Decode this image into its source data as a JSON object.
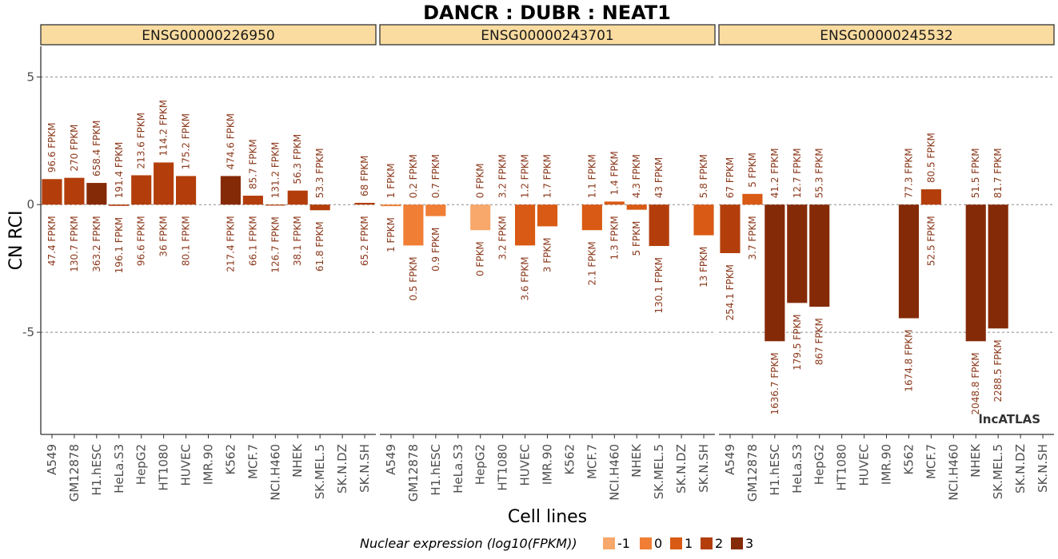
{
  "chart_data": {
    "type": "bar",
    "title": "DANCR : DUBR : NEAT1",
    "xlabel": "Cell lines",
    "ylabel": "CN RCI",
    "ylim": [
      -9.0,
      6.2
    ],
    "y_ticks": [
      5,
      0,
      -5
    ],
    "y_tick_labels": [
      "5",
      "0",
      "-5"
    ],
    "grid": "dashed at y ticks",
    "categories": [
      "A549",
      "GM12878",
      "H1.hESC",
      "HeLa.S3",
      "HepG2",
      "HT1080",
      "HUVEC",
      "IMR.90",
      "K562",
      "MCF.7",
      "NCI.H460",
      "NHEK",
      "SK.MEL.5",
      "SK.N.DZ",
      "SK.N.SH"
    ],
    "color_scale": {
      "title": "Nuclear expression (log10(FPKM))",
      "levels": [
        {
          "label": "-1",
          "color": "#f7a86a"
        },
        {
          "label": "0",
          "color": "#f07e35"
        },
        {
          "label": "1",
          "color": "#d95a14"
        },
        {
          "label": "2",
          "color": "#b33e0b"
        },
        {
          "label": "3",
          "color": "#852a07"
        }
      ]
    },
    "panels": [
      {
        "name": "ENSG00000226950",
        "values": [
          1.0,
          1.05,
          0.85,
          -0.05,
          1.15,
          1.65,
          1.12,
          null,
          1.12,
          0.35,
          -0.03,
          0.55,
          -0.22,
          null,
          0.07
        ],
        "levels": [
          2,
          2,
          3,
          2,
          2,
          2,
          2,
          null,
          3,
          2,
          2,
          2,
          2,
          null,
          2
        ],
        "top_labels": [
          "96.6 FPKM",
          "270 FPKM",
          "658.4 FPKM",
          "191.4 FPKM",
          "213.6 FPKM",
          "114.2 FPKM",
          "175.2 FPKM",
          "",
          "474.6 FPKM",
          "85.7 FPKM",
          "131.2 FPKM",
          "56.3 FPKM",
          "53.3 FPKM",
          "",
          "68 FPKM"
        ],
        "bottom_labels": [
          "47.4 FPKM",
          "130.7 FPKM",
          "363.2 FPKM",
          "196.1 FPKM",
          "96.6 FPKM",
          "36 FPKM",
          "80.1 FPKM",
          "",
          "217.4 FPKM",
          "66.1 FPKM",
          "126.7 FPKM",
          "38.1 FPKM",
          "61.8 FPKM",
          "",
          "65.2 FPKM"
        ]
      },
      {
        "name": "ENSG00000243701",
        "values": [
          -0.06,
          -1.6,
          -0.45,
          null,
          -1.0,
          null,
          -1.6,
          -0.85,
          null,
          -1.0,
          0.12,
          -0.2,
          -1.62,
          null,
          -1.2
        ],
        "levels": [
          0,
          0,
          0,
          null,
          -1,
          null,
          1,
          1,
          null,
          1,
          1,
          1,
          2,
          null,
          1
        ],
        "top_labels": [
          "1 FPKM",
          "0.2 FPKM",
          "0.7 FPKM",
          "",
          "0 FPKM",
          "3.2 FPKM",
          "1.2 FPKM",
          "1.7 FPKM",
          "",
          "1.1 FPKM",
          "1.4 FPKM",
          "4.3 FPKM",
          "43 FPKM",
          "",
          "5.8 FPKM"
        ],
        "bottom_labels": [
          "1 FPKM",
          "0.5 FPKM",
          "0.9 FPKM",
          "",
          "0 FPKM",
          "3.2 FPKM",
          "3.6 FPKM",
          "3 FPKM",
          "",
          "2.1 FPKM",
          "1.3 FPKM",
          "5 FPKM",
          "130.1 FPKM",
          "",
          "13 FPKM"
        ]
      },
      {
        "name": "ENSG00000245532",
        "values": [
          -1.9,
          0.42,
          -5.35,
          -3.85,
          -4.0,
          null,
          null,
          null,
          -4.45,
          0.6,
          null,
          -5.35,
          -4.85,
          null,
          null
        ],
        "levels": [
          2,
          1,
          3,
          3,
          3,
          null,
          null,
          null,
          3,
          2,
          null,
          3,
          3,
          null,
          null
        ],
        "top_labels": [
          "67 FPKM",
          "5 FPKM",
          "41.2 FPKM",
          "12.7 FPKM",
          "55.3 FPKM",
          "",
          "",
          "",
          "77.3 FPKM",
          "80.5 FPKM",
          "",
          "51.5 FPKM",
          "81.7 FPKM",
          "",
          ""
        ],
        "bottom_labels": [
          "254.1 FPKM",
          "3.7 FPKM",
          "1636.7 FPKM",
          "179.5 FPKM",
          "867 FPKM",
          "",
          "",
          "",
          "1674.8 FPKM",
          "52.5 FPKM",
          "",
          "2048.8 FPKM",
          "2288.5 FPKM",
          "",
          ""
        ]
      }
    ],
    "annotation": "lncATLAS"
  }
}
